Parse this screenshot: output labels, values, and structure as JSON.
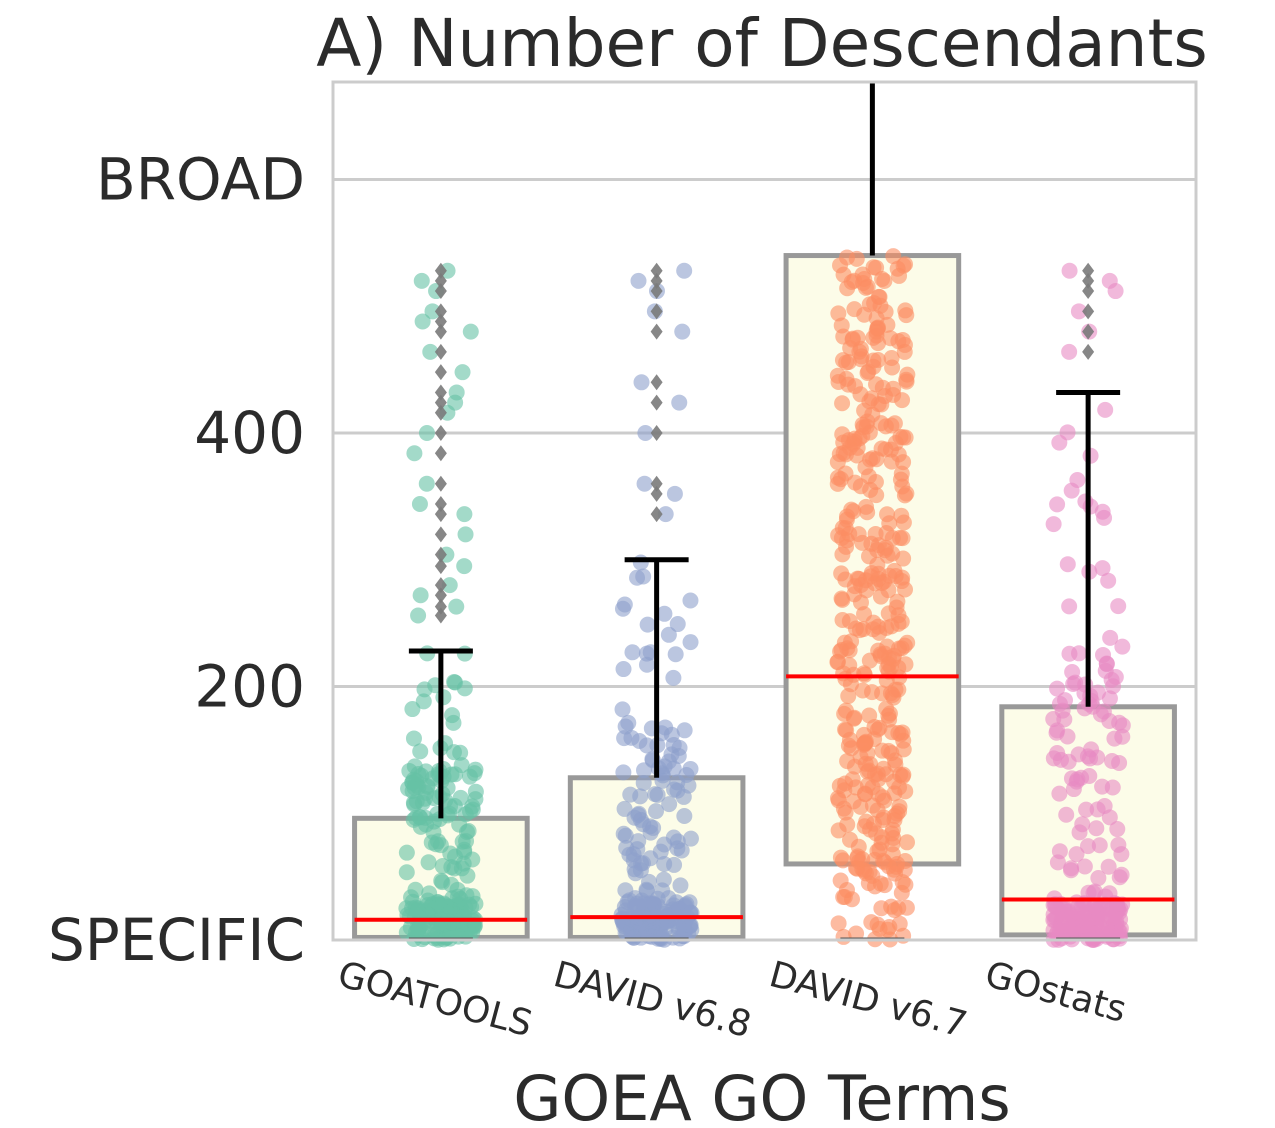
{
  "chart_data": {
    "type": "box",
    "title": "A) Number of Descendants",
    "xlabel": "GOEA GO Terms",
    "ylabel": "",
    "ylim": [
      0,
      540
    ],
    "yticks": [
      {
        "value": 0,
        "label": "SPECIFIC"
      },
      {
        "value": 200,
        "label": "200"
      },
      {
        "value": 400,
        "label": "400"
      },
      {
        "value": 600,
        "label": "BROAD"
      }
    ],
    "grid": true,
    "categories": [
      "GOATOOLS",
      "DAVID v6.8",
      "DAVID v6.7",
      "GOstats"
    ],
    "series": [
      {
        "color": "#66c2a5",
        "box": {
          "whisker_low": 0,
          "q1": 2,
          "median": 16,
          "q3": 96,
          "whisker_high": 228
        },
        "outliers": [
          256,
          263,
          272,
          280,
          295,
          304,
          320,
          336,
          344,
          360,
          384,
          400,
          416,
          424,
          432,
          448,
          464,
          480,
          488,
          496,
          512,
          520,
          528
        ]
      },
      {
        "color": "#8da0cb",
        "box": {
          "whisker_low": 0,
          "q1": 2,
          "median": 18,
          "q3": 128,
          "whisker_high": 300
        },
        "outliers": [
          336,
          352,
          360,
          400,
          424,
          440,
          480,
          496,
          512,
          520,
          528
        ]
      },
      {
        "color": "#fc8d62",
        "box": {
          "whisker_low": 0,
          "q1": 60,
          "median": 208,
          "q3": 540,
          "whisker_high": 540
        },
        "outliers": []
      },
      {
        "color": "#e78ac3",
        "box": {
          "whisker_low": 0,
          "q1": 4,
          "median": 32,
          "q3": 184,
          "whisker_high": 432
        },
        "outliers": [
          464,
          480,
          496,
          512,
          520,
          528
        ]
      }
    ]
  }
}
